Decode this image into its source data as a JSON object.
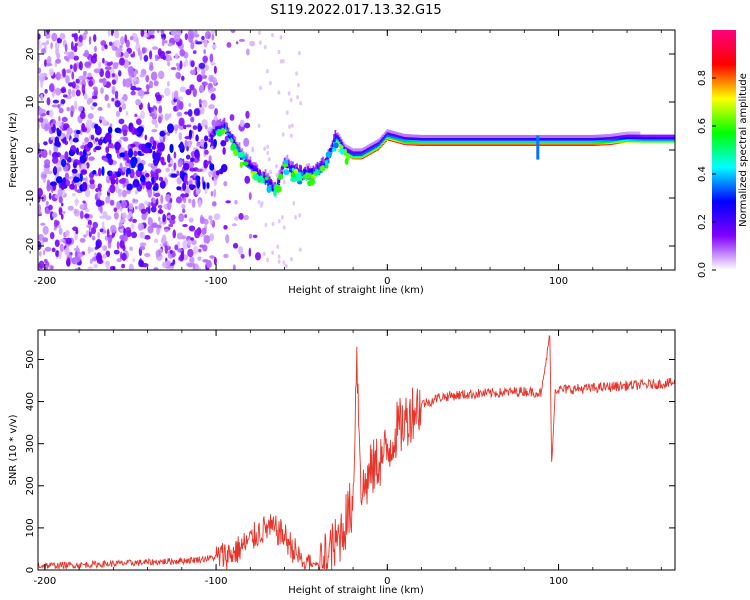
{
  "title": "S119.2022.017.13.32.G15",
  "chart_data": [
    {
      "type": "heatmap",
      "xlabel": "Height of straight line (km)",
      "ylabel": "Frequency (Hz)",
      "xlim": [
        -204,
        168
      ],
      "ylim": [
        -25,
        25
      ],
      "xticks": [
        -200,
        -100,
        0,
        100
      ],
      "yticks": [
        -20,
        -10,
        0,
        10,
        20
      ],
      "colorbar": {
        "label": "Normalized spectral amplitude",
        "range": [
          0,
          1
        ],
        "ticks": [
          0.0,
          0.2,
          0.4,
          0.6,
          0.8
        ],
        "colors": [
          "#ffffff",
          "#8000ff",
          "#0000ff",
          "#00ffff",
          "#00ff00",
          "#ffff00",
          "#ff0000",
          "#ff0080"
        ]
      },
      "ridge": {
        "x": [
          -104,
          -100,
          -95,
          -90,
          -85,
          -80,
          -75,
          -70,
          -65,
          -60,
          -55,
          -50,
          -45,
          -40,
          -35,
          -30,
          -28,
          -25,
          -20,
          -15,
          -10,
          -5,
          0,
          5,
          10,
          20,
          40,
          60,
          80,
          90,
          100,
          120,
          130,
          140,
          150,
          168
        ],
        "y": [
          2,
          3.5,
          4,
          1,
          -2,
          -4,
          -6,
          -7,
          -9,
          -3,
          -5,
          -6,
          -6,
          -5,
          -3,
          2,
          1,
          -1,
          -2,
          -2,
          -1,
          0,
          2,
          1.5,
          1,
          0.8,
          0.8,
          0.8,
          0.8,
          0.8,
          0.8,
          0.8,
          1,
          1.5,
          1.5,
          1.5
        ],
        "strength": [
          0.2,
          0.4,
          0.5,
          0.4,
          0.35,
          0.35,
          0.4,
          0.35,
          0.3,
          0.2,
          0.45,
          0.6,
          0.65,
          0.5,
          0.45,
          0.55,
          0.7,
          0.75,
          0.8,
          0.85,
          0.85,
          0.85,
          0.85,
          0.9,
          0.95,
          1,
          1,
          1,
          1,
          1,
          1,
          1,
          0.9,
          0.7,
          0.6,
          0.6
        ]
      },
      "noise_extent_x": [
        -204,
        -90
      ]
    },
    {
      "type": "line",
      "xlabel": "Height of straight line (km)",
      "ylabel": "SNR (10 * v/v)",
      "xlim": [
        -204,
        168
      ],
      "ylim": [
        0,
        570
      ],
      "xticks": [
        -200,
        -100,
        0,
        100
      ],
      "yticks": [
        0,
        100,
        200,
        300,
        400,
        500
      ],
      "color": "#e8352b",
      "series": [
        {
          "x": [
            -204,
            -180,
            -160,
            -140,
            -120,
            -110,
            -100,
            -90,
            -85,
            -80,
            -75,
            -70,
            -65,
            -60,
            -55,
            -50,
            -45,
            -40,
            -35,
            -30,
            -25,
            -20,
            -18,
            -15,
            -10,
            -5,
            0,
            5,
            10,
            15,
            20,
            25,
            30,
            40,
            50,
            60,
            70,
            80,
            90,
            95,
            96,
            98,
            100,
            110,
            120,
            130,
            140,
            150,
            160,
            168
          ],
          "y": [
            10,
            12,
            15,
            18,
            22,
            25,
            30,
            40,
            55,
            70,
            90,
            100,
            95,
            80,
            50,
            20,
            10,
            15,
            30,
            60,
            110,
            160,
            520,
            180,
            230,
            260,
            280,
            330,
            350,
            380,
            395,
            400,
            410,
            415,
            418,
            420,
            422,
            425,
            420,
            560,
            240,
            430,
            428,
            430,
            432,
            435,
            438,
            440,
            442,
            445
          ]
        }
      ]
    }
  ]
}
